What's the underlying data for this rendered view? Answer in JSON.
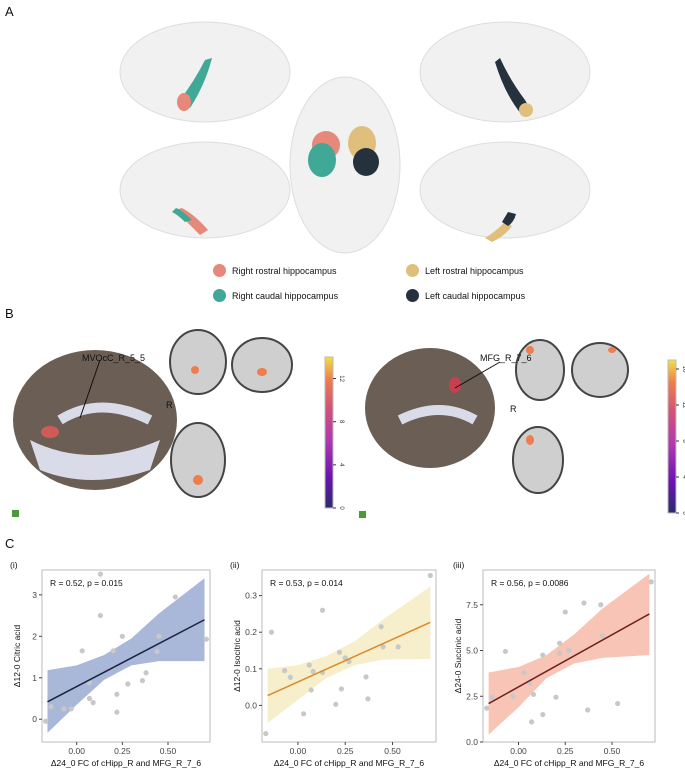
{
  "panels": {
    "a": "A",
    "b": "B",
    "c": "C"
  },
  "panel_a": {
    "legend": [
      {
        "label": "Right rostral hippocampus",
        "color": "#e6887a"
      },
      {
        "label": "Left rostral hippocampus",
        "color": "#e0bf7c"
      },
      {
        "label": "Right caudal hippocampus",
        "color": "#3fa897"
      },
      {
        "label": "Left caudal hippocampus",
        "color": "#25323d"
      }
    ]
  },
  "panel_b": {
    "left": {
      "region_label": "MVOcC_R_5_5",
      "orientation": "R",
      "colorbar_ticks": [
        "0",
        "4",
        "8",
        "12"
      ],
      "colorbar_max": 14
    },
    "right": {
      "region_label": "MFG_R_7_6",
      "orientation": "R",
      "colorbar_ticks": [
        "0",
        "4",
        "8",
        "12",
        "16"
      ],
      "colorbar_max": 17
    },
    "colormap": [
      "#2a2d6b",
      "#6a12b0",
      "#b03ab0",
      "#d0507a",
      "#ee7d50",
      "#f0e040"
    ]
  },
  "chart_data": [
    {
      "type": "scatter",
      "sublabel": "(i)",
      "annotation": "R = 0.52, p = 0.015",
      "xlabel": "Δ24_0 FC of cHipp_R and MFG_R_7_6",
      "ylabel": "Δ12-0 Citric acid",
      "xticks": [
        0.0,
        0.25,
        0.5
      ],
      "xtick_labels": [
        "0.00",
        "0.25",
        "0.50"
      ],
      "yticks": [
        0,
        1,
        2,
        3
      ],
      "ytick_labels": [
        "0",
        "1",
        "2",
        "3"
      ],
      "xlim": [
        -0.19,
        0.73
      ],
      "ylim": [
        -0.55,
        3.6
      ],
      "band_color": "#a9b7d8",
      "line_color": "#1c2340",
      "points": [
        [
          -0.17,
          -0.05
        ],
        [
          -0.14,
          0.3
        ],
        [
          -0.07,
          0.25
        ],
        [
          -0.03,
          0.25
        ],
        [
          0.03,
          1.65
        ],
        [
          0.07,
          0.88
        ],
        [
          0.07,
          0.5
        ],
        [
          0.09,
          0.4
        ],
        [
          0.13,
          3.5
        ],
        [
          0.13,
          2.5
        ],
        [
          0.2,
          1.65
        ],
        [
          0.22,
          0.6
        ],
        [
          0.22,
          0.17
        ],
        [
          0.25,
          2.0
        ],
        [
          0.28,
          0.85
        ],
        [
          0.36,
          0.93
        ],
        [
          0.38,
          1.12
        ],
        [
          0.44,
          1.63
        ],
        [
          0.45,
          2.0
        ],
        [
          0.54,
          2.95
        ],
        [
          0.71,
          1.93
        ]
      ],
      "fit": [
        [
          -0.16,
          0.42
        ],
        [
          0.7,
          2.4
        ]
      ],
      "ci": [
        [
          -0.16,
          -0.33,
          1.18
        ],
        [
          0.0,
          0.35,
          1.3
        ],
        [
          0.15,
          0.95,
          1.55
        ],
        [
          0.3,
          1.3,
          1.95
        ],
        [
          0.45,
          1.4,
          2.55
        ],
        [
          0.7,
          1.4,
          3.4
        ]
      ]
    },
    {
      "type": "scatter",
      "sublabel": "(ii)",
      "annotation": "R = 0.53, p = 0.014",
      "xlabel": "Δ24_0 FC of cHipp_R and MFG_R_7_6",
      "ylabel": "Δ12-0 Isocitric acid",
      "xticks": [
        0.0,
        0.25,
        0.5
      ],
      "xtick_labels": [
        "0.00",
        "0.25",
        "0.50"
      ],
      "yticks": [
        0.0,
        0.1,
        0.2,
        0.3
      ],
      "ytick_labels": [
        "0.0",
        "0.1",
        "0.2",
        "0.3"
      ],
      "xlim": [
        -0.19,
        0.73
      ],
      "ylim": [
        -0.1,
        0.37
      ],
      "band_color": "#f7efcc",
      "line_color": "#d98a2a",
      "points": [
        [
          -0.17,
          -0.077
        ],
        [
          -0.14,
          0.2
        ],
        [
          -0.07,
          0.095
        ],
        [
          -0.04,
          0.077
        ],
        [
          0.03,
          -0.023
        ],
        [
          0.06,
          0.11
        ],
        [
          0.07,
          0.042
        ],
        [
          0.08,
          0.093
        ],
        [
          0.13,
          0.26
        ],
        [
          0.13,
          0.09
        ],
        [
          0.2,
          0.003
        ],
        [
          0.22,
          0.145
        ],
        [
          0.23,
          0.045
        ],
        [
          0.25,
          0.13
        ],
        [
          0.27,
          0.12
        ],
        [
          0.36,
          0.078
        ],
        [
          0.37,
          0.018
        ],
        [
          0.44,
          0.215
        ],
        [
          0.45,
          0.16
        ],
        [
          0.53,
          0.16
        ],
        [
          0.7,
          0.355
        ]
      ],
      "fit": [
        [
          -0.16,
          0.027
        ],
        [
          0.7,
          0.227
        ]
      ],
      "ci": [
        [
          -0.16,
          -0.048,
          0.1
        ],
        [
          0.0,
          0.015,
          0.11
        ],
        [
          0.15,
          0.075,
          0.135
        ],
        [
          0.3,
          0.11,
          0.175
        ],
        [
          0.45,
          0.125,
          0.235
        ],
        [
          0.7,
          0.127,
          0.325
        ]
      ]
    },
    {
      "type": "scatter",
      "sublabel": "(iii)",
      "annotation": "R = 0.56, p = 0.0086",
      "xlabel": "Δ24_0 FC of cHipp_R and MFG_R_7_6",
      "ylabel": "Δ24-0 Succinic acid",
      "xticks": [
        0.0,
        0.25,
        0.5
      ],
      "xtick_labels": [
        "0.00",
        "0.25",
        "0.50"
      ],
      "yticks": [
        0.0,
        2.5,
        5.0,
        7.5
      ],
      "ytick_labels": [
        "0.0",
        "2.5",
        "5.0",
        "7.5"
      ],
      "xlim": [
        -0.19,
        0.73
      ],
      "ylim": [
        0,
        9.4
      ],
      "band_color": "#f7c4b6",
      "line_color": "#6e1f1f",
      "points": [
        [
          -0.17,
          1.85
        ],
        [
          -0.14,
          2.45
        ],
        [
          -0.07,
          4.95
        ],
        [
          -0.03,
          2.5
        ],
        [
          0.03,
          3.8
        ],
        [
          0.06,
          3.2
        ],
        [
          0.07,
          1.1
        ],
        [
          0.08,
          2.6
        ],
        [
          0.13,
          4.75
        ],
        [
          0.13,
          1.5
        ],
        [
          0.2,
          2.45
        ],
        [
          0.22,
          5.4
        ],
        [
          0.22,
          4.85
        ],
        [
          0.25,
          7.1
        ],
        [
          0.27,
          5.0
        ],
        [
          0.35,
          7.6
        ],
        [
          0.37,
          1.75
        ],
        [
          0.44,
          7.5
        ],
        [
          0.45,
          5.8
        ],
        [
          0.53,
          2.1
        ],
        [
          0.71,
          8.75
        ]
      ],
      "fit": [
        [
          -0.16,
          2.1
        ],
        [
          0.7,
          7.0
        ]
      ],
      "ci": [
        [
          -0.16,
          0.4,
          3.8
        ],
        [
          0.0,
          1.9,
          4.1
        ],
        [
          0.15,
          3.5,
          4.75
        ],
        [
          0.3,
          4.3,
          5.9
        ],
        [
          0.45,
          4.6,
          7.3
        ],
        [
          0.7,
          4.75,
          9.2
        ]
      ]
    }
  ]
}
